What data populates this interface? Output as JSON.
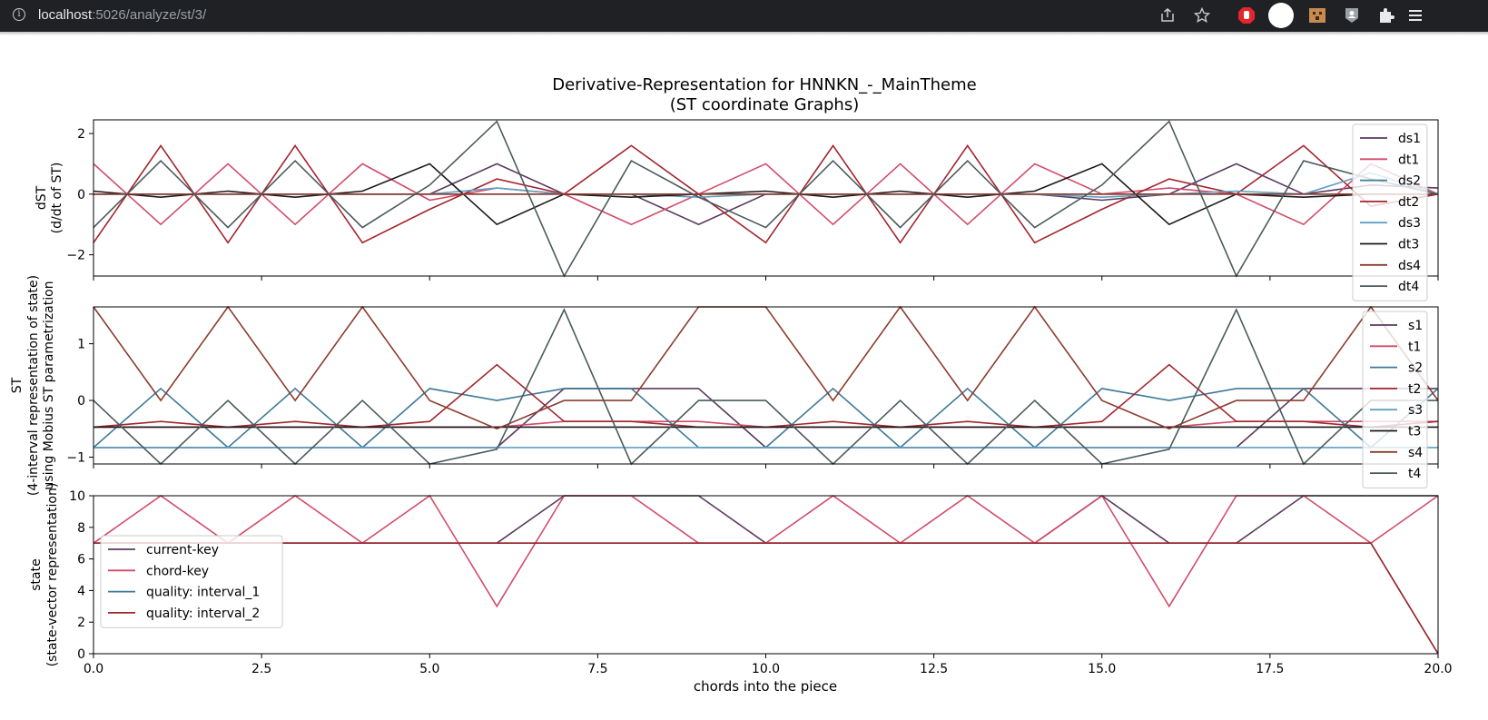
{
  "browser": {
    "url_host": "localhost",
    "url_rest": ":5026/analyze/st/3/",
    "icons": [
      "info-icon",
      "share-icon",
      "star-icon",
      "adblock-icon",
      "profile-circle-icon",
      "extension-face-icon",
      "account-icon",
      "puzzle-icon",
      "menu-icon"
    ]
  },
  "figure": {
    "title_line1": "Derivative-Representation for HNNKN_-_MainTheme",
    "title_line2": "(ST coordinate Graphs)",
    "xlabel": "chords into the piece"
  },
  "chart_data": [
    {
      "type": "line",
      "ylabel": [
        "dST",
        "(d/dt of ST)"
      ],
      "xlim": [
        0,
        20
      ],
      "ylim": [
        -2.7,
        2.45
      ],
      "yticks": [
        -2,
        0,
        2
      ],
      "legend_position": "right",
      "x": [
        0,
        1,
        2,
        3,
        4,
        5,
        6,
        7,
        8,
        9,
        10,
        11,
        12,
        13,
        14,
        15,
        16,
        17,
        18,
        19,
        20
      ],
      "series": [
        {
          "name": "ds1",
          "color": "#5b3a5e",
          "values": [
            0,
            0,
            0,
            0,
            0,
            0,
            1,
            0,
            0,
            -1,
            0,
            0,
            0,
            0,
            0,
            -0.2,
            0,
            1,
            0,
            0.3,
            0.2
          ]
        },
        {
          "name": "dt1",
          "color": "#d24b6a",
          "values": [
            1,
            -1,
            1,
            -1,
            1,
            -0.2,
            0.2,
            0,
            -1,
            0,
            1,
            -1,
            1,
            -1,
            1,
            0,
            0.2,
            0,
            -1,
            1,
            0
          ]
        },
        {
          "name": "ds2",
          "color": "#3d7a96",
          "values": [
            0,
            0,
            0,
            0,
            0,
            0,
            0,
            0,
            0,
            0,
            0,
            0,
            0,
            0,
            0,
            0,
            0,
            0,
            0,
            0,
            0
          ]
        },
        {
          "name": "dt2",
          "color": "#a3252e",
          "values": [
            -1.6,
            1.6,
            -1.6,
            1.6,
            -1.6,
            -0.5,
            0.5,
            0,
            1.6,
            0,
            -1.6,
            1.6,
            -1.6,
            1.6,
            -1.6,
            -0.5,
            0.5,
            0,
            1.6,
            -0.4,
            0
          ]
        },
        {
          "name": "ds3",
          "color": "#5fa0c2",
          "values": [
            0,
            0,
            0,
            0,
            0,
            0,
            0.2,
            0,
            0,
            -0.1,
            0,
            0,
            0,
            0,
            0,
            -0.1,
            0,
            0.1,
            0,
            0.7,
            0
          ]
        },
        {
          "name": "dt3",
          "color": "#1a1a1a",
          "values": [
            0.1,
            -0.1,
            0.1,
            -0.1,
            0.1,
            1,
            -1,
            0,
            -0.1,
            0,
            0.1,
            -0.1,
            0.1,
            -0.1,
            0.1,
            1,
            -1,
            0,
            -0.1,
            0,
            0
          ]
        },
        {
          "name": "ds4",
          "color": "#8c3b2e",
          "values": [
            0,
            0,
            0,
            0,
            0,
            0,
            0,
            0,
            0,
            0,
            0,
            0,
            0,
            0,
            0,
            0,
            0,
            0,
            0,
            0,
            0
          ]
        },
        {
          "name": "dt4",
          "color": "#4a5a5c",
          "values": [
            -1.1,
            1.1,
            -1.1,
            1.1,
            -1.1,
            0.3,
            2.4,
            -2.7,
            1.1,
            -0.1,
            -1.1,
            1.1,
            -1.1,
            1.1,
            -1.1,
            0.3,
            2.4,
            -2.7,
            1.1,
            0.5,
            0
          ]
        }
      ]
    },
    {
      "type": "line",
      "ylabel": [
        "ST",
        "(4-interval representation of state)",
        "using Mobius ST parametrization"
      ],
      "xlim": [
        0,
        20
      ],
      "ylim": [
        -1.12,
        1.65
      ],
      "yticks": [
        -1,
        0,
        1
      ],
      "legend_position": "right",
      "x": [
        0,
        1,
        2,
        3,
        4,
        5,
        6,
        7,
        8,
        9,
        10,
        11,
        12,
        13,
        14,
        15,
        16,
        17,
        18,
        19,
        20
      ],
      "series": [
        {
          "name": "s1",
          "color": "#5b3a5e",
          "values": [
            -0.83,
            -0.83,
            -0.83,
            -0.83,
            -0.83,
            -0.83,
            -0.83,
            0.21,
            0.21,
            0.21,
            -0.83,
            -0.83,
            -0.83,
            -0.83,
            -0.83,
            -0.83,
            -0.83,
            -0.83,
            0.21,
            0.21,
            0.21
          ]
        },
        {
          "name": "t1",
          "color": "#d24b6a",
          "values": [
            -0.47,
            -0.47,
            -0.47,
            -0.47,
            -0.47,
            -0.47,
            -0.47,
            -0.37,
            -0.37,
            -0.37,
            -0.47,
            -0.47,
            -0.47,
            -0.47,
            -0.47,
            -0.47,
            -0.47,
            -0.37,
            -0.37,
            -0.37,
            -0.37
          ]
        },
        {
          "name": "s2",
          "color": "#3d7a96",
          "values": [
            -0.83,
            0.21,
            -0.83,
            0.21,
            -0.83,
            0.21,
            0,
            0.21,
            0.21,
            -0.83,
            -0.83,
            0.21,
            -0.83,
            0.21,
            -0.83,
            0.21,
            0,
            0.21,
            0.21,
            -0.83,
            0.21
          ]
        },
        {
          "name": "t2",
          "color": "#a3252e",
          "values": [
            -0.47,
            -0.37,
            -0.47,
            -0.37,
            -0.47,
            -0.37,
            0.63,
            -0.37,
            -0.37,
            -0.47,
            -0.47,
            -0.37,
            -0.47,
            -0.37,
            -0.47,
            -0.37,
            0.63,
            -0.37,
            -0.37,
            -0.47,
            -0.37
          ]
        },
        {
          "name": "s3",
          "color": "#5fa0c2",
          "values": [
            -0.83,
            -0.83,
            -0.83,
            -0.83,
            -0.83,
            -0.83,
            -0.83,
            -0.83,
            -0.83,
            -0.83,
            -0.83,
            -0.83,
            -0.83,
            -0.83,
            -0.83,
            -0.83,
            -0.83,
            -0.83,
            -0.83,
            -0.83,
            -0.83
          ]
        },
        {
          "name": "t3",
          "color": "#1a1a1a",
          "values": [
            -0.47,
            -0.47,
            -0.47,
            -0.47,
            -0.47,
            -0.47,
            -0.47,
            -0.47,
            -0.47,
            -0.47,
            -0.47,
            -0.47,
            -0.47,
            -0.47,
            -0.47,
            -0.47,
            -0.47,
            -0.47,
            -0.47,
            -0.47,
            -0.47
          ]
        },
        {
          "name": "s4",
          "color": "#8c3b2e",
          "values": [
            1.65,
            0,
            1.65,
            0,
            1.65,
            0,
            -0.5,
            0,
            0,
            1.65,
            1.65,
            0,
            1.65,
            0,
            1.65,
            0,
            -0.5,
            0,
            0,
            1.65,
            0
          ]
        },
        {
          "name": "t4",
          "color": "#4a5a5c",
          "values": [
            0,
            -1.12,
            0,
            -1.12,
            0,
            -1.12,
            -0.86,
            1.6,
            -1.12,
            0,
            0,
            -1.12,
            0,
            -1.12,
            0,
            -1.12,
            -0.86,
            1.6,
            -1.12,
            0,
            0
          ]
        }
      ]
    },
    {
      "type": "line",
      "ylabel": [
        "state",
        "(state-vector representation)"
      ],
      "xlim": [
        0,
        20
      ],
      "ylim": [
        0,
        10
      ],
      "yticks": [
        0,
        2,
        4,
        6,
        8,
        10
      ],
      "xticks": [
        "0.0",
        "2.5",
        "5.0",
        "7.5",
        "10.0",
        "12.5",
        "15.0",
        "17.5",
        "20.0"
      ],
      "legend_position": "lower left",
      "x": [
        0,
        1,
        2,
        3,
        4,
        5,
        6,
        7,
        8,
        9,
        10,
        11,
        12,
        13,
        14,
        15,
        16,
        17,
        18,
        19,
        20
      ],
      "series": [
        {
          "name": "current-key",
          "color": "#5b3a5e",
          "values": [
            7,
            7,
            7,
            7,
            7,
            7,
            7,
            10,
            10,
            10,
            7,
            7,
            7,
            7,
            7,
            10,
            7,
            7,
            10,
            10,
            10
          ]
        },
        {
          "name": "chord-key",
          "color": "#d24b6a",
          "values": [
            7,
            10,
            7,
            10,
            7,
            10,
            3,
            10,
            10,
            7,
            7,
            10,
            7,
            10,
            7,
            10,
            3,
            10,
            10,
            7,
            10
          ]
        },
        {
          "name": "quality: interval_1",
          "color": "#3d7a96",
          "values": [
            7,
            7,
            7,
            7,
            7,
            7,
            7,
            7,
            7,
            7,
            7,
            7,
            7,
            7,
            7,
            7,
            7,
            7,
            7,
            7,
            0
          ]
        },
        {
          "name": "quality: interval_2",
          "color": "#a3252e",
          "values": [
            7,
            7,
            7,
            7,
            7,
            7,
            7,
            7,
            7,
            7,
            7,
            7,
            7,
            7,
            7,
            7,
            7,
            7,
            7,
            7,
            0
          ]
        }
      ]
    }
  ]
}
